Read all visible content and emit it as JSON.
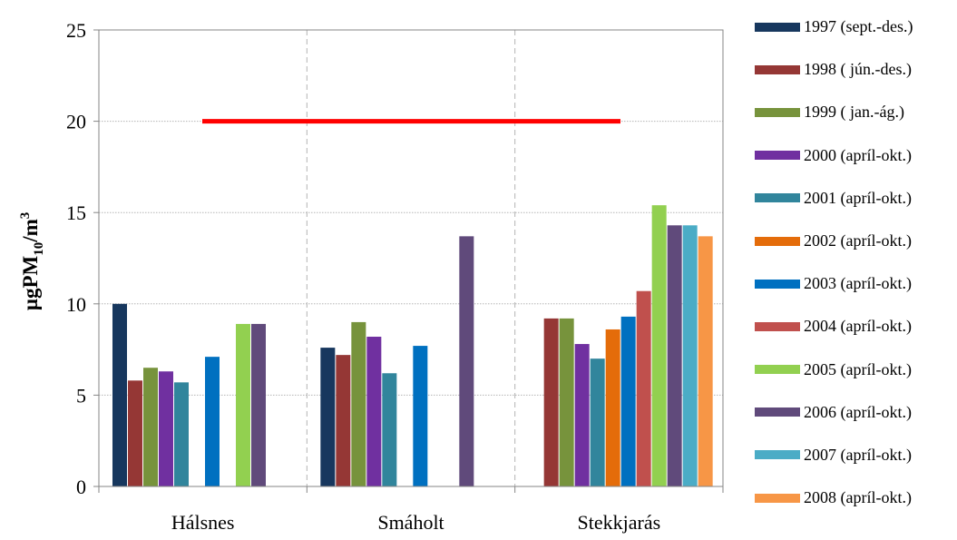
{
  "chart_data": {
    "type": "bar",
    "ylabel": {
      "main": "µgPM",
      "sub": "10",
      "mid": "/m",
      "sup": "3"
    },
    "ylim": [
      0,
      25
    ],
    "yticks": [
      0,
      5,
      10,
      15,
      20,
      25
    ],
    "categories": [
      "Hálsnes",
      "Smáholt",
      "Stekkjarás"
    ],
    "series": [
      {
        "name": "1997 (sept.-des.)",
        "color": "#17375e",
        "values": [
          10.0,
          7.6,
          null
        ]
      },
      {
        "name": "1998 ( jún.-des.)",
        "color": "#953735",
        "values": [
          5.8,
          7.2,
          9.2
        ]
      },
      {
        "name": "1999 ( jan.-ág.)",
        "color": "#77933c",
        "values": [
          6.5,
          9.0,
          9.2
        ]
      },
      {
        "name": "2000 (apríl-okt.)",
        "color": "#7030a0",
        "values": [
          6.3,
          8.2,
          7.8
        ]
      },
      {
        "name": "2001 (apríl-okt.)",
        "color": "#31859c",
        "values": [
          5.7,
          6.2,
          7.0
        ]
      },
      {
        "name": "2002 (apríl-okt.)",
        "color": "#e46c0a",
        "values": [
          null,
          null,
          8.6
        ]
      },
      {
        "name": "2003 (apríl-okt.)",
        "color": "#0070c0",
        "values": [
          7.1,
          7.7,
          9.3
        ]
      },
      {
        "name": "2004 (apríl-okt.)",
        "color": "#c0504d",
        "values": [
          null,
          null,
          10.7
        ]
      },
      {
        "name": "2005 (apríl-okt.)",
        "color": "#92d050",
        "values": [
          8.9,
          null,
          15.4
        ]
      },
      {
        "name": "2006 (apríl-okt.)",
        "color": "#604a7b",
        "values": [
          8.9,
          13.7,
          14.3
        ]
      },
      {
        "name": "2007 (apríl-okt.)",
        "color": "#4bacc6",
        "values": [
          null,
          null,
          14.3
        ]
      },
      {
        "name": "2008 (apríl-okt.)",
        "color": "#f79646",
        "values": [
          null,
          null,
          13.7
        ]
      }
    ],
    "reference_line": {
      "value": 20,
      "color": "#ff0000"
    },
    "grid": {
      "horizontal": true,
      "vertical_category_separators": true
    },
    "legend_position": "right"
  }
}
